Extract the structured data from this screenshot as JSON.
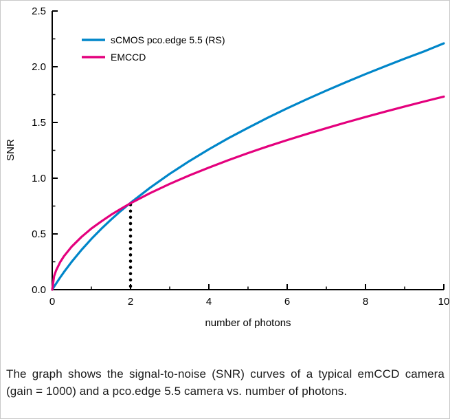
{
  "chart_data": {
    "type": "line",
    "title": "",
    "xlabel": "number of photons",
    "ylabel": "SNR",
    "xlim": [
      0,
      10
    ],
    "ylim": [
      0,
      2.5
    ],
    "grid": false,
    "legend_position": "top-left",
    "x_major_ticks": [
      0,
      2,
      4,
      6,
      8,
      10
    ],
    "x_minor_ticks": [
      1,
      3,
      5,
      7,
      9
    ],
    "y_major_ticks": [
      0,
      0.5,
      1,
      1.5,
      2,
      2.5
    ],
    "y_minor_ticks": [
      0.25,
      0.75,
      1.25,
      1.75,
      2.25
    ],
    "series": [
      {
        "name": "sCMOS pco.edge 5.5 (RS)",
        "color": "#0086c9",
        "x": [
          0,
          0.05,
          0.1,
          0.2,
          0.3,
          0.5,
          0.75,
          1,
          1.25,
          1.5,
          1.75,
          2,
          2.5,
          3,
          3.5,
          4,
          4.5,
          5,
          5.5,
          6,
          6.5,
          7,
          7.5,
          8,
          8.5,
          9,
          9.5,
          10
        ],
        "y": [
          0,
          0.028,
          0.055,
          0.108,
          0.158,
          0.251,
          0.358,
          0.455,
          0.545,
          0.628,
          0.706,
          0.779,
          0.915,
          1.039,
          1.153,
          1.259,
          1.359,
          1.452,
          1.542,
          1.627,
          1.708,
          1.786,
          1.861,
          1.934,
          2.004,
          2.072,
          2.138,
          2.21
        ]
      },
      {
        "name": "EMCCD",
        "color": "#e4007d",
        "x": [
          0,
          0.05,
          0.1,
          0.2,
          0.3,
          0.5,
          0.75,
          1,
          1.25,
          1.5,
          1.75,
          2,
          2.5,
          3,
          3.5,
          4,
          4.5,
          5,
          5.5,
          6,
          6.5,
          7,
          7.5,
          8,
          8.5,
          9,
          9.5,
          10
        ],
        "y": [
          0,
          0.122,
          0.173,
          0.245,
          0.3,
          0.387,
          0.474,
          0.548,
          0.612,
          0.671,
          0.725,
          0.775,
          0.866,
          0.949,
          1.025,
          1.095,
          1.162,
          1.225,
          1.285,
          1.342,
          1.396,
          1.449,
          1.5,
          1.549,
          1.597,
          1.643,
          1.688,
          1.732
        ]
      }
    ],
    "annotation": {
      "type": "dotted-vline",
      "x": 2,
      "y_from": 0,
      "y_to": 0.78,
      "color": "#000000",
      "meaning": "intersection of the two SNR curves at 2 photons"
    }
  },
  "caption": {
    "text": "The graph shows the signal-to-noise (SNR)  curves of a typical emCCD camera (gain = 1000) and a pco.edge 5.5 camera vs. number of photons."
  }
}
